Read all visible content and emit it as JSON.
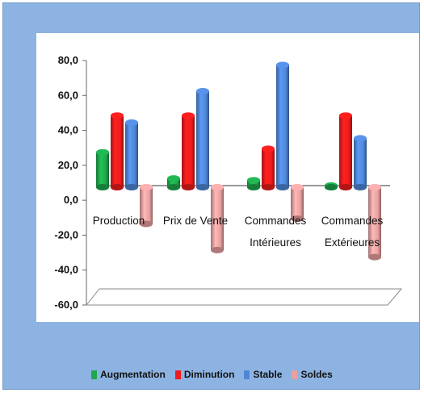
{
  "chart_data": {
    "type": "bar",
    "categories": [
      [
        "Production"
      ],
      [
        "Prix de Vente"
      ],
      [
        "Commandes",
        "Intérieures"
      ],
      [
        "Commandes",
        "Extérieures"
      ]
    ],
    "series": [
      {
        "name": "Augmentation",
        "values": [
          20.0,
          5.0,
          4.0,
          1.0
        ],
        "color": "#1fa84c"
      },
      {
        "name": "Diminution",
        "values": [
          41.0,
          41.0,
          22.0,
          41.0
        ],
        "color": "#ee1c1c"
      },
      {
        "name": "Stable",
        "values": [
          37.0,
          55.0,
          70.0,
          28.0
        ],
        "color": "#4f86d6"
      },
      {
        "name": "Soldes",
        "values": [
          -21.0,
          -36.0,
          -18.0,
          -40.0
        ],
        "color": "#e8a0a0"
      }
    ],
    "y_ticks": [
      "80,0",
      "60,0",
      "40,0",
      "20,0",
      "0,0",
      "-20,0",
      "-40,0",
      "-60,0"
    ],
    "ylim": [
      -60,
      80
    ],
    "grid": false,
    "legend_position": "bottom"
  }
}
